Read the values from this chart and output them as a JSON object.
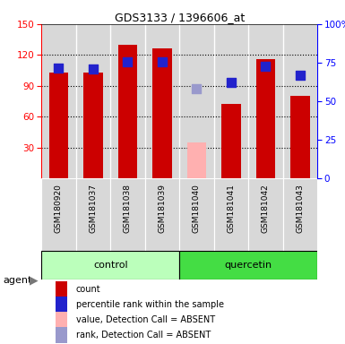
{
  "title": "GDS3133 / 1396606_at",
  "samples": [
    "GSM180920",
    "GSM181037",
    "GSM181038",
    "GSM181039",
    "GSM181040",
    "GSM181041",
    "GSM181042",
    "GSM181043"
  ],
  "groups": [
    "control",
    "control",
    "control",
    "control",
    "quercetin",
    "quercetin",
    "quercetin",
    "quercetin"
  ],
  "bar_values": [
    103,
    103,
    130,
    126,
    null,
    72,
    116,
    80
  ],
  "absent_bar_values": [
    null,
    null,
    null,
    null,
    35,
    null,
    null,
    null
  ],
  "percentile_ranks_left": [
    107,
    106,
    113,
    113,
    null,
    93,
    109,
    100
  ],
  "absent_ranks_left": [
    null,
    null,
    null,
    null,
    87,
    null,
    null,
    null
  ],
  "bar_color": "#cc0000",
  "absent_bar_color": "#ffb0b0",
  "rank_color": "#2222cc",
  "absent_rank_color": "#9999cc",
  "ylim_left": [
    0,
    150
  ],
  "yticks_left": [
    30,
    60,
    90,
    120,
    150
  ],
  "yticks_right": [
    0,
    25,
    50,
    75,
    100
  ],
  "ytick_labels_right": [
    "0",
    "25",
    "50",
    "75",
    "100%"
  ],
  "bar_width": 0.55,
  "rank_marker_size": 55,
  "grid_color": "black",
  "grid_linestyle": ":",
  "control_label": "control",
  "quercetin_label": "quercetin",
  "agent_label": "agent",
  "control_color": "#bbffbb",
  "quercetin_color": "#44dd44",
  "col_bg_color": "#d8d8d8",
  "legend_items": [
    {
      "label": "count",
      "color": "#cc0000"
    },
    {
      "label": "percentile rank within the sample",
      "color": "#2222cc"
    },
    {
      "label": "value, Detection Call = ABSENT",
      "color": "#ffb0b0"
    },
    {
      "label": "rank, Detection Call = ABSENT",
      "color": "#9999cc"
    }
  ]
}
